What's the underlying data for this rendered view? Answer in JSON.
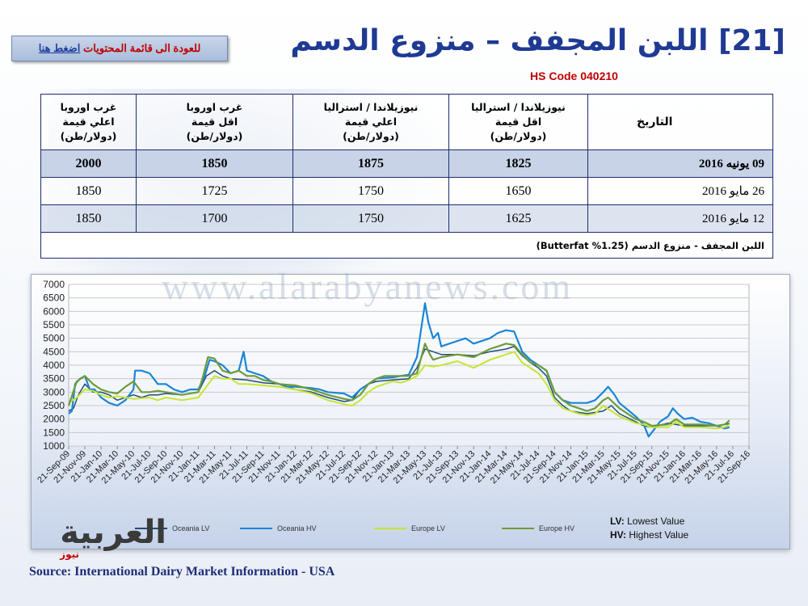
{
  "back_button": {
    "label_a": "للعودة الى قائمة المحتويات",
    "label_b": "اضغط هنا"
  },
  "title": "[21] اللبن المجفف – منزوع الدسم",
  "hs_code": "HS Code 040210",
  "table": {
    "headers": [
      "التاريخ",
      [
        "نيوزيلاندا / استراليا",
        "اقل قيمة",
        "(دولار/طن)"
      ],
      [
        "نيوزيلاندا / استراليا",
        "اعلي قيمة",
        "(دولار/طن)"
      ],
      [
        "غرب اوروبا",
        "اقل قيمة",
        "(دولار/طن)"
      ],
      [
        "غرب اوروبا",
        "اعلي قيمة",
        "(دولار/طن)"
      ]
    ],
    "rows": [
      [
        "09 يونيه 2016",
        "1825",
        "1875",
        "1850",
        "2000"
      ],
      [
        "26 مايو 2016",
        "1650",
        "1750",
        "1725",
        "1850"
      ],
      [
        "12 مايو 2016",
        "1625",
        "1750",
        "1700",
        "1850"
      ]
    ],
    "note": "اللبن المجفف - منزوع الدسم (1.25% Butterfat)"
  },
  "watermark": "www.alarabyanews.com",
  "legend_note": {
    "lv": "LV:",
    "lv_text": " Lowest Value",
    "hv": "HV:",
    "hv_text": " Highest Value"
  },
  "logo": {
    "main": "العربية",
    "sub": "نيوز"
  },
  "source": "Source: International Dairy Market Information - USA",
  "chart_data": {
    "type": "line",
    "ylim": [
      1000,
      7000
    ],
    "yticks": [
      1000,
      1500,
      2000,
      2500,
      3000,
      3500,
      4000,
      4500,
      5000,
      5500,
      6000,
      6500,
      7000
    ],
    "x_tick_labels": [
      "21-Sep-09",
      "21-Nov-09",
      "21-Jan-10",
      "21-Mar-10",
      "21-May-10",
      "21-Jul-10",
      "21-Sep-10",
      "21-Nov-10",
      "21-Jan-11",
      "21-Mar-11",
      "21-May-11",
      "21-Jul-11",
      "21-Sep-11",
      "21-Nov-11",
      "21-Jan-12",
      "21-Mar-12",
      "21-May-12",
      "21-Jul-12",
      "21-Sep-12",
      "21-Nov-12",
      "21-Jan-13",
      "21-Mar-13",
      "21-May-13",
      "21-Jul-13",
      "21-Sep-13",
      "21-Nov-13",
      "21-Jan-14",
      "21-Mar-14",
      "21-May-14",
      "21-Jul-14",
      "21-Sep-14",
      "21-Nov-14",
      "21-Jan-15",
      "21-Mar-15",
      "21-May-15",
      "21-Jul-15",
      "21-Sep-15",
      "21-Nov-15",
      "21-Jan-16",
      "21-Mar-16",
      "21-May-16",
      "21-Jul-16",
      "21-Sep-16"
    ],
    "x_domain": [
      0,
      42
    ],
    "series": [
      {
        "name": "Oceania LV",
        "color": "#1f4e79",
        "width": 1.5,
        "points": [
          [
            0,
            2300
          ],
          [
            0.3,
            2400
          ],
          [
            0.6,
            2900
          ],
          [
            1,
            3300
          ],
          [
            1.5,
            3000
          ],
          [
            2,
            3000
          ],
          [
            2.5,
            2900
          ],
          [
            3,
            2700
          ],
          [
            3.5,
            2800
          ],
          [
            4,
            2900
          ],
          [
            4.5,
            2800
          ],
          [
            5,
            2900
          ],
          [
            5.5,
            2900
          ],
          [
            6,
            2950
          ],
          [
            7,
            2900
          ],
          [
            8,
            3000
          ],
          [
            8.5,
            3600
          ],
          [
            9,
            3800
          ],
          [
            9.5,
            3600
          ],
          [
            10,
            3500
          ],
          [
            11,
            3450
          ],
          [
            12,
            3350
          ],
          [
            13,
            3300
          ],
          [
            14,
            3100
          ],
          [
            15,
            3000
          ],
          [
            16,
            2800
          ],
          [
            17,
            2650
          ],
          [
            17.5,
            2700
          ],
          [
            18,
            3100
          ],
          [
            18.5,
            3300
          ],
          [
            19,
            3400
          ],
          [
            20,
            3450
          ],
          [
            21,
            3500
          ],
          [
            21.5,
            3900
          ],
          [
            22,
            4600
          ],
          [
            22.5,
            4500
          ],
          [
            23,
            4400
          ],
          [
            24,
            4400
          ],
          [
            25,
            4350
          ],
          [
            26,
            4500
          ],
          [
            27,
            4600
          ],
          [
            27.5,
            4700
          ],
          [
            28,
            4350
          ],
          [
            28.5,
            4100
          ],
          [
            29,
            3900
          ],
          [
            29.5,
            3600
          ],
          [
            30,
            2800
          ],
          [
            30.5,
            2500
          ],
          [
            31,
            2300
          ],
          [
            32,
            2200
          ],
          [
            33,
            2300
          ],
          [
            33.5,
            2500
          ],
          [
            34,
            2200
          ],
          [
            35,
            1900
          ],
          [
            35.5,
            1750
          ],
          [
            36,
            1700
          ],
          [
            37,
            1850
          ],
          [
            38,
            1750
          ],
          [
            39,
            1750
          ],
          [
            40,
            1750
          ],
          [
            40.5,
            1800
          ],
          [
            40.8,
            1830
          ]
        ]
      },
      {
        "name": "Oceania HV",
        "color": "#1a85d6",
        "width": 2.2,
        "points": [
          [
            0,
            2200
          ],
          [
            0.2,
            2300
          ],
          [
            0.4,
            3300
          ],
          [
            0.7,
            3500
          ],
          [
            1,
            3600
          ],
          [
            1.3,
            3100
          ],
          [
            1.6,
            3100
          ],
          [
            2,
            2800
          ],
          [
            2.5,
            2600
          ],
          [
            3,
            2500
          ],
          [
            3.5,
            2700
          ],
          [
            4,
            3100
          ],
          [
            4.1,
            3800
          ],
          [
            4.5,
            3800
          ],
          [
            5,
            3700
          ],
          [
            5.5,
            3300
          ],
          [
            6,
            3300
          ],
          [
            6.5,
            3100
          ],
          [
            7,
            3000
          ],
          [
            7.5,
            3100
          ],
          [
            8,
            3100
          ],
          [
            8.4,
            3600
          ],
          [
            8.7,
            4200
          ],
          [
            9,
            4150
          ],
          [
            9.5,
            4000
          ],
          [
            10,
            3700
          ],
          [
            10.5,
            3800
          ],
          [
            10.8,
            4500
          ],
          [
            11,
            3800
          ],
          [
            11.5,
            3700
          ],
          [
            12,
            3600
          ],
          [
            12.5,
            3400
          ],
          [
            13,
            3300
          ],
          [
            13.5,
            3200
          ],
          [
            14,
            3200
          ],
          [
            15,
            3150
          ],
          [
            15.5,
            3100
          ],
          [
            16,
            3000
          ],
          [
            17,
            2950
          ],
          [
            17.5,
            2800
          ],
          [
            18,
            3100
          ],
          [
            18.5,
            3300
          ],
          [
            19,
            3500
          ],
          [
            20,
            3550
          ],
          [
            20.5,
            3600
          ],
          [
            21,
            3650
          ],
          [
            21.5,
            4300
          ],
          [
            22,
            6300
          ],
          [
            22.2,
            5600
          ],
          [
            22.5,
            5000
          ],
          [
            22.8,
            5200
          ],
          [
            23,
            4700
          ],
          [
            24,
            4900
          ],
          [
            24.5,
            5000
          ],
          [
            25,
            4800
          ],
          [
            26,
            5000
          ],
          [
            26.5,
            5200
          ],
          [
            27,
            5300
          ],
          [
            27.5,
            5250
          ],
          [
            28,
            4500
          ],
          [
            28.5,
            4200
          ],
          [
            29,
            4000
          ],
          [
            29.5,
            3800
          ],
          [
            30,
            3000
          ],
          [
            30.5,
            2700
          ],
          [
            31,
            2600
          ],
          [
            32,
            2600
          ],
          [
            32.5,
            2700
          ],
          [
            33,
            3000
          ],
          [
            33.3,
            3200
          ],
          [
            33.7,
            2900
          ],
          [
            34,
            2600
          ],
          [
            35,
            2100
          ],
          [
            35.5,
            1800
          ],
          [
            35.8,
            1350
          ],
          [
            36,
            1500
          ],
          [
            36.5,
            1900
          ],
          [
            37,
            2100
          ],
          [
            37.3,
            2400
          ],
          [
            37.6,
            2200
          ],
          [
            38,
            2000
          ],
          [
            38.5,
            2050
          ],
          [
            39,
            1900
          ],
          [
            39.5,
            1850
          ],
          [
            40,
            1750
          ],
          [
            40.5,
            1650
          ],
          [
            40.8,
            1700
          ]
        ]
      },
      {
        "name": "Europe LV",
        "color": "#c6e531",
        "width": 2,
        "points": [
          [
            0,
            2600
          ],
          [
            0.5,
            2800
          ],
          [
            1,
            3100
          ],
          [
            1.5,
            3050
          ],
          [
            2,
            2900
          ],
          [
            2.5,
            2800
          ],
          [
            3,
            2850
          ],
          [
            3.5,
            2800
          ],
          [
            4,
            2750
          ],
          [
            5,
            2800
          ],
          [
            5.5,
            2700
          ],
          [
            6,
            2800
          ],
          [
            7,
            2700
          ],
          [
            8,
            2800
          ],
          [
            8.5,
            3200
          ],
          [
            9,
            3600
          ],
          [
            9.5,
            3500
          ],
          [
            10,
            3500
          ],
          [
            10.5,
            3300
          ],
          [
            11,
            3300
          ],
          [
            12,
            3250
          ],
          [
            13,
            3200
          ],
          [
            14,
            3100
          ],
          [
            15,
            2950
          ],
          [
            16,
            2700
          ],
          [
            17,
            2550
          ],
          [
            17.5,
            2500
          ],
          [
            18,
            2700
          ],
          [
            18.5,
            3000
          ],
          [
            19,
            3200
          ],
          [
            19.5,
            3300
          ],
          [
            20,
            3400
          ],
          [
            20.5,
            3350
          ],
          [
            21,
            3450
          ],
          [
            21.5,
            3600
          ],
          [
            22,
            4000
          ],
          [
            22.5,
            3950
          ],
          [
            23,
            4000
          ],
          [
            24,
            4150
          ],
          [
            25,
            3900
          ],
          [
            26,
            4200
          ],
          [
            26.5,
            4300
          ],
          [
            27,
            4400
          ],
          [
            27.5,
            4500
          ],
          [
            28,
            4100
          ],
          [
            28.5,
            3900
          ],
          [
            29,
            3700
          ],
          [
            29.5,
            3300
          ],
          [
            30,
            2700
          ],
          [
            30.5,
            2400
          ],
          [
            31,
            2300
          ],
          [
            31.5,
            2200
          ],
          [
            32,
            2150
          ],
          [
            32.5,
            2200
          ],
          [
            33,
            2500
          ],
          [
            33.5,
            2300
          ],
          [
            34,
            2100
          ],
          [
            35,
            1850
          ],
          [
            35.5,
            1800
          ],
          [
            36,
            1700
          ],
          [
            37,
            1700
          ],
          [
            37.5,
            1900
          ],
          [
            38,
            1700
          ],
          [
            39,
            1700
          ],
          [
            40,
            1650
          ],
          [
            40.5,
            1700
          ],
          [
            40.8,
            1800
          ]
        ]
      },
      {
        "name": "Europe HV",
        "color": "#6d9b3a",
        "width": 2.2,
        "points": [
          [
            0,
            2500
          ],
          [
            0.5,
            3400
          ],
          [
            1,
            3600
          ],
          [
            1.5,
            3300
          ],
          [
            2,
            3100
          ],
          [
            2.5,
            3000
          ],
          [
            3,
            2950
          ],
          [
            3.5,
            3200
          ],
          [
            4,
            3400
          ],
          [
            4.5,
            3000
          ],
          [
            5,
            3000
          ],
          [
            5.5,
            3050
          ],
          [
            6,
            3000
          ],
          [
            7,
            2900
          ],
          [
            8,
            3000
          ],
          [
            8.3,
            3600
          ],
          [
            8.6,
            4300
          ],
          [
            9,
            4250
          ],
          [
            9.5,
            3800
          ],
          [
            10,
            3700
          ],
          [
            10.5,
            3800
          ],
          [
            11,
            3600
          ],
          [
            11.5,
            3600
          ],
          [
            12,
            3450
          ],
          [
            12.5,
            3400
          ],
          [
            13,
            3300
          ],
          [
            14,
            3250
          ],
          [
            15,
            3100
          ],
          [
            16,
            2900
          ],
          [
            17,
            2750
          ],
          [
            17.5,
            2700
          ],
          [
            18,
            2900
          ],
          [
            18.5,
            3300
          ],
          [
            19,
            3500
          ],
          [
            19.5,
            3600
          ],
          [
            20,
            3600
          ],
          [
            21,
            3600
          ],
          [
            21.5,
            3700
          ],
          [
            22,
            4800
          ],
          [
            22.3,
            4400
          ],
          [
            22.5,
            4200
          ],
          [
            23,
            4300
          ],
          [
            24,
            4400
          ],
          [
            25,
            4300
          ],
          [
            26,
            4600
          ],
          [
            26.5,
            4700
          ],
          [
            27,
            4800
          ],
          [
            27.5,
            4750
          ],
          [
            28,
            4400
          ],
          [
            28.5,
            4100
          ],
          [
            29,
            4000
          ],
          [
            29.5,
            3800
          ],
          [
            30,
            3000
          ],
          [
            30.5,
            2700
          ],
          [
            31,
            2500
          ],
          [
            31.5,
            2400
          ],
          [
            32,
            2300
          ],
          [
            32.5,
            2400
          ],
          [
            33,
            2700
          ],
          [
            33.3,
            2800
          ],
          [
            34,
            2400
          ],
          [
            35,
            2000
          ],
          [
            35.5,
            1900
          ],
          [
            36,
            1750
          ],
          [
            37,
            1800
          ],
          [
            37.5,
            2000
          ],
          [
            38,
            1800
          ],
          [
            39,
            1800
          ],
          [
            40,
            1750
          ],
          [
            40.5,
            1800
          ],
          [
            40.8,
            1950
          ]
        ]
      }
    ]
  }
}
